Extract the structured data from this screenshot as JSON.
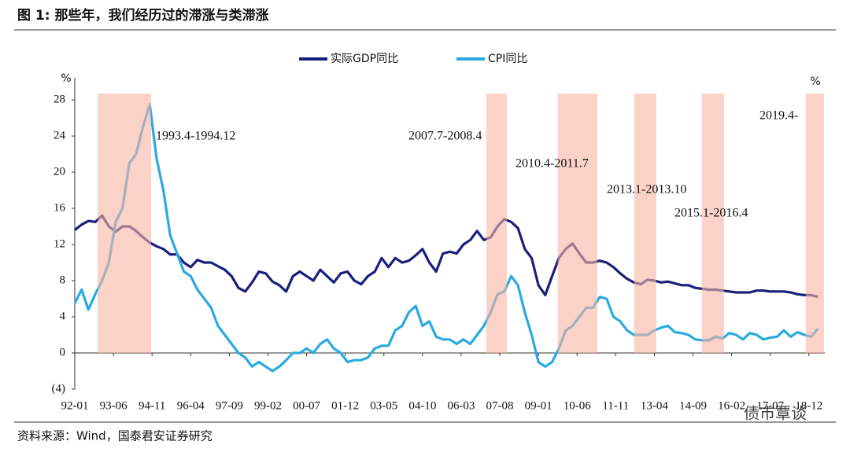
{
  "chart_data": {
    "type": "line",
    "title": "图 1: 那些年，我们经历过的滞涨与类滞涨",
    "source": "资料来源：Wind，国泰君安证券研究",
    "watermark": "债市覃谈",
    "y_unit": "%",
    "xlim": [
      1992,
      2019.5
    ],
    "ylim": [
      -4,
      28.7
    ],
    "yticks": [
      {
        "value": -4,
        "label": "(4)"
      },
      0,
      4,
      8,
      12,
      16,
      20,
      24,
      28
    ],
    "xticks": [
      {
        "value": 1992.0,
        "label": "92-01"
      },
      {
        "value": 1993.417,
        "label": "93-06"
      },
      {
        "value": 1994.833,
        "label": "94-11"
      },
      {
        "value": 1996.25,
        "label": "96-04"
      },
      {
        "value": 1997.667,
        "label": "97-09"
      },
      {
        "value": 1999.083,
        "label": "99-02"
      },
      {
        "value": 2000.5,
        "label": "00-07"
      },
      {
        "value": 2001.917,
        "label": "01-12"
      },
      {
        "value": 2003.333,
        "label": "03-05"
      },
      {
        "value": 2004.75,
        "label": "04-10"
      },
      {
        "value": 2006.167,
        "label": "06-03"
      },
      {
        "value": 2007.583,
        "label": "07-08"
      },
      {
        "value": 2009.0,
        "label": "09-01"
      },
      {
        "value": 2010.417,
        "label": "10-06"
      },
      {
        "value": 2011.833,
        "label": "11-11"
      },
      {
        "value": 2013.25,
        "label": "13-04"
      },
      {
        "value": 2014.667,
        "label": "14-09"
      },
      {
        "value": 2016.083,
        "label": "16-02"
      },
      {
        "value": 2017.5,
        "label": "17-07"
      },
      {
        "value": 2018.917,
        "label": "18-12"
      }
    ],
    "x": [
      1992,
      1992.25,
      1992.5,
      1992.75,
      1993,
      1993.25,
      1993.5,
      1993.75,
      1994,
      1994.25,
      1994.5,
      1994.75,
      1995,
      1995.25,
      1995.5,
      1995.75,
      1996,
      1996.25,
      1996.5,
      1996.75,
      1997,
      1997.25,
      1997.5,
      1997.75,
      1998,
      1998.25,
      1998.5,
      1998.75,
      1999,
      1999.25,
      1999.5,
      1999.75,
      2000,
      2000.25,
      2000.5,
      2000.75,
      2001,
      2001.25,
      2001.5,
      2001.75,
      2002,
      2002.25,
      2002.5,
      2002.75,
      2003,
      2003.25,
      2003.5,
      2003.75,
      2004,
      2004.25,
      2004.5,
      2004.75,
      2005,
      2005.25,
      2005.5,
      2005.75,
      2006,
      2006.25,
      2006.5,
      2006.75,
      2007,
      2007.25,
      2007.5,
      2007.75,
      2008,
      2008.25,
      2008.5,
      2008.75,
      2009,
      2009.25,
      2009.5,
      2009.75,
      2010,
      2010.25,
      2010.5,
      2010.75,
      2011,
      2011.25,
      2011.5,
      2011.75,
      2012,
      2012.25,
      2012.5,
      2012.75,
      2013,
      2013.25,
      2013.5,
      2013.75,
      2014,
      2014.25,
      2014.5,
      2014.75,
      2015,
      2015.25,
      2015.5,
      2015.75,
      2016,
      2016.25,
      2016.5,
      2016.75,
      2017,
      2017.25,
      2017.5,
      2017.75,
      2018,
      2018.25,
      2018.5,
      2018.75,
      2019,
      2019.25
    ],
    "series": [
      {
        "name": "实际GDP同比",
        "color": "#1b1f7c",
        "values": [
          13.6,
          14.2,
          14.6,
          14.5,
          15.2,
          14.0,
          13.4,
          14.0,
          14.0,
          13.5,
          12.8,
          12.2,
          11.8,
          11.5,
          10.9,
          10.9,
          10.0,
          9.5,
          10.3,
          10.0,
          10.0,
          9.6,
          9.2,
          8.5,
          7.2,
          6.8,
          7.8,
          9.0,
          8.8,
          7.9,
          7.5,
          6.8,
          8.5,
          9.0,
          8.5,
          8.0,
          9.2,
          8.5,
          7.8,
          8.8,
          9.0,
          8.0,
          7.6,
          8.5,
          9.0,
          10.5,
          9.5,
          10.5,
          10.0,
          10.2,
          10.8,
          11.5,
          10.0,
          9.0,
          11.0,
          11.2,
          11.0,
          12.0,
          12.5,
          13.5,
          12.5,
          12.8,
          14.0,
          14.8,
          14.5,
          13.8,
          11.5,
          10.5,
          7.5,
          6.4,
          8.5,
          10.5,
          11.5,
          12.1,
          11.0,
          10.0,
          10.0,
          10.2,
          10.0,
          9.5,
          8.8,
          8.2,
          7.8,
          7.6,
          8.1,
          8.0,
          7.8,
          7.9,
          7.7,
          7.5,
          7.5,
          7.2,
          7.1,
          7.0,
          7.0,
          6.9,
          6.8,
          6.7,
          6.7,
          6.7,
          6.9,
          6.9,
          6.8,
          6.8,
          6.8,
          6.7,
          6.5,
          6.4,
          6.4,
          6.2
        ]
      },
      {
        "name": "CPI同比",
        "color": "#2aaae2",
        "values": [
          5.5,
          7.0,
          4.8,
          6.5,
          8.0,
          10.0,
          14.5,
          16.0,
          21.0,
          22.0,
          25.0,
          27.5,
          21.5,
          18.0,
          13.0,
          11.0,
          9.0,
          8.5,
          7.0,
          6.0,
          5.0,
          3.0,
          2.0,
          1.0,
          0.0,
          -0.5,
          -1.5,
          -1.0,
          -1.5,
          -2.0,
          -1.5,
          -0.8,
          0.0,
          0.0,
          0.5,
          0.0,
          1.0,
          1.5,
          0.5,
          0.0,
          -1.0,
          -0.8,
          -0.8,
          -0.5,
          0.5,
          0.8,
          0.8,
          2.5,
          3.0,
          4.5,
          5.2,
          3.0,
          3.5,
          1.8,
          1.5,
          1.5,
          1.0,
          1.5,
          1.0,
          2.0,
          3.0,
          4.5,
          6.5,
          6.8,
          8.5,
          7.5,
          4.5,
          2.0,
          -1.0,
          -1.5,
          -1.0,
          0.5,
          2.5,
          3.0,
          4.0,
          5.0,
          5.0,
          6.2,
          6.0,
          4.0,
          3.5,
          2.5,
          2.0,
          2.0,
          2.0,
          2.5,
          2.8,
          3.0,
          2.3,
          2.2,
          2.0,
          1.5,
          1.4,
          1.4,
          1.8,
          1.6,
          2.2,
          2.0,
          1.5,
          2.2,
          2.0,
          1.5,
          1.7,
          1.8,
          2.5,
          1.8,
          2.3,
          2.0,
          1.8,
          2.7
        ]
      }
    ],
    "periods": [
      {
        "label": "1993.4-1994.12",
        "start": 1992.84,
        "end": 1994.8
      },
      {
        "label": "2007.7-2008.4",
        "start": 2007.09,
        "end": 2007.84
      },
      {
        "label": "2010.4-2011.7",
        "start": 2009.71,
        "end": 2011.16
      },
      {
        "label": "2013.1-2013.10",
        "start": 2012.51,
        "end": 2013.32
      },
      {
        "label": "2015.1-2016.4",
        "start": 2014.99,
        "end": 2015.8
      },
      {
        "label": "2019.4-",
        "start": 2018.8,
        "end": 2019.47
      }
    ],
    "period_color": "#f8b4a4",
    "grid": false
  }
}
